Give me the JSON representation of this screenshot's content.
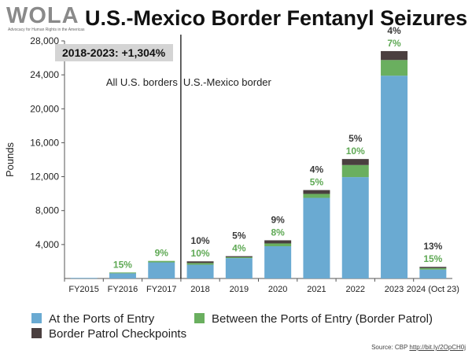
{
  "header": {
    "logo_text": "WOLA",
    "logo_tagline": "Advocacy for Human Rights in the Americas",
    "title": "U.S.-Mexico Border Fentanyl Seizures"
  },
  "chart_data": {
    "type": "bar",
    "stacked": true,
    "ylabel": "Pounds",
    "ylim": [
      0,
      28000
    ],
    "yticks": [
      "4,000",
      "8,000",
      "12,000",
      "16,000",
      "20,000",
      "24,000",
      "28,000"
    ],
    "ytick_values": [
      4000,
      8000,
      12000,
      16000,
      20000,
      24000,
      28000
    ],
    "categories": [
      "FY2015",
      "FY2016",
      "FY2017",
      "2018",
      "2019",
      "2020",
      "2021",
      "2022",
      "2023",
      "2024 (Oct 23)"
    ],
    "series": [
      {
        "name": "At the Ports of Entry",
        "color": "#6aaad2",
        "values": [
          70,
          610,
          1900,
          1620,
          2400,
          3800,
          9500,
          11950,
          23900,
          1050
        ]
      },
      {
        "name": "Between the Ports of Entry (Border Patrol)",
        "color": "#6aaf5f",
        "values": [
          0,
          100,
          170,
          200,
          110,
          330,
          470,
          1420,
          1850,
          170
        ]
      },
      {
        "name": "Border Patrol Checkpoints",
        "color": "#4a3f3f",
        "values": [
          0,
          0,
          0,
          200,
          120,
          370,
          450,
          710,
          1050,
          150
        ]
      }
    ],
    "labels_between_pct": [
      "",
      "15%",
      "9%",
      "10%",
      "4%",
      "8%",
      "5%",
      "10%",
      "7%",
      "15%"
    ],
    "labels_checkpoint_pct": [
      "",
      "",
      "",
      "10%",
      "5%",
      "9%",
      "4%",
      "5%",
      "4%",
      "13%"
    ],
    "divider_after_index": 2,
    "annotation_box": "2018-2023: +1,304%",
    "region_left_label": "All U.S. borders",
    "region_right_label": "U.S.-Mexico border",
    "grid": false,
    "legend_position": "bottom"
  },
  "colors": {
    "ports": "#6aaad2",
    "between": "#6aaf5f",
    "checkpoints": "#4a3f3f",
    "between_label": "#5fa955",
    "checkpoint_label": "#3a3a3a",
    "annotation_bg": "#d4d4d4"
  },
  "source": {
    "prefix": "Source: CBP ",
    "link": "http://bit.ly/2OpCH0j"
  }
}
